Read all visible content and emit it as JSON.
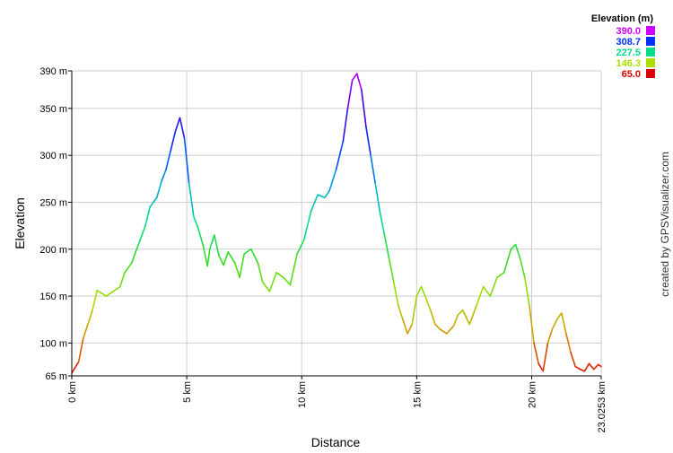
{
  "chart_data": {
    "type": "line",
    "xlabel": "Distance",
    "ylabel": "Elevation",
    "xlim": [
      0,
      23.0253
    ],
    "ylim": [
      65,
      390
    ],
    "x_unit": "km",
    "y_unit": "m",
    "grid": true,
    "x_ticks": [
      {
        "value": 0,
        "label": "0 km"
      },
      {
        "value": 5,
        "label": "5 km"
      },
      {
        "value": 10,
        "label": "10 km"
      },
      {
        "value": 15,
        "label": "15 km"
      },
      {
        "value": 20,
        "label": "20 km"
      },
      {
        "value": 23.0253,
        "label": "23.0253 km"
      }
    ],
    "y_ticks": [
      {
        "value": 65,
        "label": "65 m"
      },
      {
        "value": 100,
        "label": "100 m"
      },
      {
        "value": 150,
        "label": "150 m"
      },
      {
        "value": 200,
        "label": "200 m"
      },
      {
        "value": 250,
        "label": "250 m"
      },
      {
        "value": 300,
        "label": "300 m"
      },
      {
        "value": 350,
        "label": "350 m"
      },
      {
        "value": 390,
        "label": "390 m"
      }
    ],
    "legend": {
      "title": "Elevation (m)",
      "position": "top-right",
      "entries": [
        {
          "label": "390.0",
          "color": "#cc00ff"
        },
        {
          "label": "308.7",
          "color": "#0033ff"
        },
        {
          "label": "227.5",
          "color": "#00dd88"
        },
        {
          "label": "146.3",
          "color": "#aadd00"
        },
        {
          "label": "65.0",
          "color": "#dd0000"
        }
      ]
    },
    "color_scale": [
      {
        "value": 65,
        "color": "#dd0000"
      },
      {
        "value": 105,
        "color": "#dd8800"
      },
      {
        "value": 146.3,
        "color": "#aadd00"
      },
      {
        "value": 190,
        "color": "#33dd22"
      },
      {
        "value": 227.5,
        "color": "#00dd88"
      },
      {
        "value": 268,
        "color": "#00aadd"
      },
      {
        "value": 308.7,
        "color": "#0033ff"
      },
      {
        "value": 350,
        "color": "#4400dd"
      },
      {
        "value": 390,
        "color": "#cc00ff"
      }
    ],
    "x": [
      0,
      0.3,
      0.5,
      0.7,
      0.9,
      1.1,
      1.3,
      1.5,
      1.8,
      2.1,
      2.3,
      2.6,
      2.9,
      3.2,
      3.4,
      3.7,
      3.9,
      4.1,
      4.3,
      4.5,
      4.7,
      4.9,
      5.1,
      5.3,
      5.5,
      5.7,
      5.9,
      6.0,
      6.2,
      6.4,
      6.6,
      6.8,
      7.1,
      7.3,
      7.5,
      7.8,
      8.1,
      8.3,
      8.6,
      8.9,
      9.2,
      9.5,
      9.8,
      10.1,
      10.4,
      10.7,
      11.0,
      11.2,
      11.5,
      11.8,
      12.0,
      12.2,
      12.4,
      12.6,
      12.8,
      13.0,
      13.2,
      13.4,
      13.6,
      13.8,
      14.0,
      14.2,
      14.4,
      14.6,
      14.8,
      15.0,
      15.2,
      15.4,
      15.6,
      15.8,
      16.0,
      16.3,
      16.6,
      16.8,
      17.0,
      17.3,
      17.6,
      17.9,
      18.2,
      18.5,
      18.8,
      19.1,
      19.3,
      19.5,
      19.7,
      19.9,
      20.1,
      20.3,
      20.5,
      20.7,
      20.9,
      21.1,
      21.3,
      21.5,
      21.7,
      21.9,
      22.1,
      22.3,
      22.5,
      22.7,
      22.9,
      23.0253
    ],
    "y": [
      68,
      80,
      105,
      120,
      135,
      156,
      153,
      150,
      155,
      160,
      175,
      185,
      205,
      225,
      245,
      255,
      272,
      285,
      305,
      325,
      340,
      318,
      270,
      235,
      222,
      205,
      182,
      200,
      215,
      193,
      183,
      197,
      185,
      170,
      195,
      200,
      185,
      165,
      155,
      175,
      170,
      162,
      195,
      210,
      240,
      258,
      255,
      262,
      285,
      315,
      350,
      380,
      387,
      370,
      330,
      300,
      270,
      240,
      215,
      190,
      165,
      140,
      125,
      110,
      120,
      150,
      160,
      148,
      135,
      120,
      115,
      110,
      118,
      130,
      135,
      120,
      140,
      160,
      150,
      170,
      175,
      200,
      205,
      190,
      170,
      140,
      100,
      78,
      70,
      100,
      115,
      125,
      132,
      110,
      90,
      75,
      72,
      70,
      78,
      72,
      77,
      75
    ]
  },
  "credit": "created by GPSVisualizer.com"
}
